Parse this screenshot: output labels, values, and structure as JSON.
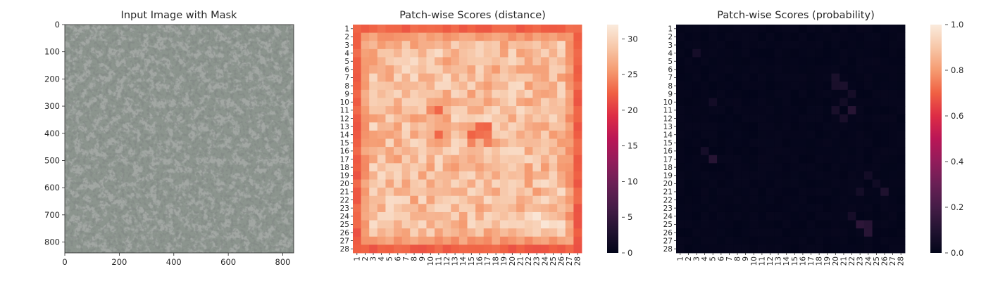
{
  "chart_data": [
    {
      "type": "image",
      "title": "Input Image with Mask",
      "xticks": [
        "0",
        "200",
        "400",
        "600",
        "800"
      ],
      "yticks": [
        "0",
        "100",
        "200",
        "300",
        "400",
        "500",
        "600",
        "700",
        "800"
      ],
      "xlim": [
        0,
        840
      ],
      "ylim": [
        840,
        0
      ],
      "content": "grey speckled texture (granite-like surface)",
      "colors": {
        "light": "#8f9890",
        "dark": "#3a3d3c"
      }
    },
    {
      "type": "heatmap",
      "title": "Patch-wise Scores (distance)",
      "x_categories": [
        "1",
        "2",
        "3",
        "4",
        "5",
        "6",
        "7",
        "8",
        "9",
        "10",
        "11",
        "12",
        "13",
        "14",
        "15",
        "16",
        "17",
        "18",
        "19",
        "20",
        "21",
        "22",
        "23",
        "24",
        "25",
        "26",
        "27",
        "28"
      ],
      "y_categories": [
        "1",
        "2",
        "3",
        "4",
        "5",
        "6",
        "7",
        "8",
        "9",
        "10",
        "11",
        "12",
        "13",
        "14",
        "15",
        "16",
        "17",
        "18",
        "19",
        "20",
        "21",
        "22",
        "23",
        "24",
        "25",
        "26",
        "27",
        "28"
      ],
      "colorbar": {
        "min": 0,
        "max": 32,
        "ticks": [
          "0",
          "5",
          "10",
          "15",
          "20",
          "25",
          "30"
        ]
      },
      "colormap": "rocket",
      "summary": "border patches ~21-23, interior patches ~25-31"
    },
    {
      "type": "heatmap",
      "title": "Patch-wise Scores (probability)",
      "x_categories": [
        "1",
        "2",
        "3",
        "4",
        "5",
        "6",
        "7",
        "8",
        "9",
        "10",
        "11",
        "12",
        "13",
        "14",
        "15",
        "16",
        "17",
        "18",
        "19",
        "20",
        "21",
        "22",
        "23",
        "24",
        "25",
        "26",
        "27",
        "28"
      ],
      "y_categories": [
        "1",
        "2",
        "3",
        "4",
        "5",
        "6",
        "7",
        "8",
        "9",
        "10",
        "11",
        "12",
        "13",
        "14",
        "15",
        "16",
        "17",
        "18",
        "19",
        "20",
        "21",
        "22",
        "23",
        "24",
        "25",
        "26",
        "27",
        "28"
      ],
      "colorbar": {
        "min": 0.0,
        "max": 1.0,
        "ticks": [
          "0.0",
          "0.2",
          "0.4",
          "0.6",
          "0.8",
          "1.0"
        ]
      },
      "colormap": "rocket",
      "summary": "nearly all values ~0.0-0.02, a few patches up to ~0.12 near rows 7-12 cols 19-21 and rows 19-26 cols 22-25"
    }
  ]
}
